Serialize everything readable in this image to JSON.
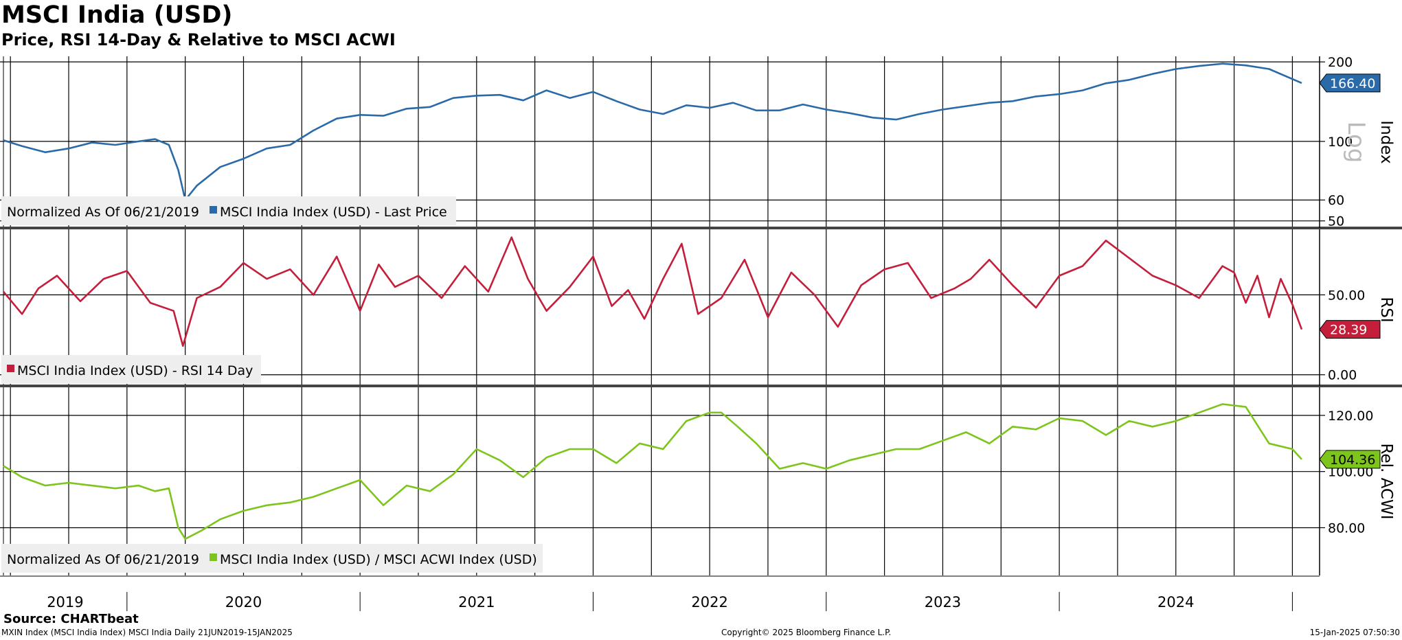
{
  "title": "MSCI India (USD)",
  "subtitle": "Price, RSI 14-Day & Relative to MSCI ACWI",
  "source": "Source: CHARTbeat",
  "footer": {
    "left": "MXIN Index (MSCI India Index) MSCI India  Daily 21JUN2019-15JAN2025",
    "center": "Copyright© 2025 Bloomberg Finance L.P.",
    "right": "15-Jan-2025 07:50:30"
  },
  "colors": {
    "price": "#2a6aa8",
    "rsi": "#c41e3a",
    "relative": "#7dc51c",
    "grid": "#000000"
  },
  "chart_data": [
    {
      "type": "line",
      "name": "price-panel",
      "legend_prefix": "Normalized As Of 06/21/2019",
      "legend": "MSCI India Index (USD)  - Last Price",
      "ylabel": "Index",
      "scale_label": "Log",
      "ylim": [
        47,
        210
      ],
      "yticks": [
        "200",
        "100",
        "60",
        "50"
      ],
      "last_value": "166.40",
      "series": [
        {
          "name": "MSCI India Index (USD) - Last Price",
          "x": [
            2019.47,
            2019.55,
            2019.65,
            2019.75,
            2019.85,
            2019.95,
            2020.05,
            2020.12,
            2020.18,
            2020.22,
            2020.25,
            2020.3,
            2020.4,
            2020.5,
            2020.6,
            2020.7,
            2020.8,
            2020.9,
            2021.0,
            2021.1,
            2021.2,
            2021.3,
            2021.4,
            2021.5,
            2021.6,
            2021.7,
            2021.8,
            2021.9,
            2022.0,
            2022.1,
            2022.2,
            2022.3,
            2022.4,
            2022.5,
            2022.6,
            2022.7,
            2022.8,
            2022.9,
            2023.0,
            2023.1,
            2023.2,
            2023.3,
            2023.4,
            2023.5,
            2023.6,
            2023.7,
            2023.8,
            2023.9,
            2024.0,
            2024.1,
            2024.2,
            2024.3,
            2024.4,
            2024.5,
            2024.6,
            2024.7,
            2024.8,
            2024.9,
            2025.04
          ],
          "values": [
            101,
            96,
            91,
            94,
            99,
            97,
            100,
            102,
            97,
            78,
            60,
            68,
            80,
            86,
            94,
            97,
            110,
            122,
            126,
            125,
            133,
            135,
            146,
            149,
            150,
            143,
            156,
            146,
            154,
            142,
            132,
            127,
            137,
            134,
            140,
            131,
            131,
            138,
            132,
            128,
            123,
            121,
            127,
            132,
            136,
            140,
            142,
            148,
            151,
            156,
            166,
            171,
            180,
            188,
            193,
            197,
            194,
            188,
            166.4
          ]
        }
      ]
    },
    {
      "type": "line",
      "name": "rsi-panel",
      "legend": "MSCI India Index (USD) - RSI 14 Day",
      "ylabel": "RSI",
      "ylim": [
        -7,
        91
      ],
      "yticks": [
        "50.00",
        "0.00"
      ],
      "last_value": "28.39",
      "series": [
        {
          "name": "MSCI India Index (USD) - RSI 14 Day",
          "x": [
            2019.47,
            2019.55,
            2019.62,
            2019.7,
            2019.8,
            2019.9,
            2020.0,
            2020.1,
            2020.2,
            2020.24,
            2020.3,
            2020.4,
            2020.5,
            2020.6,
            2020.7,
            2020.8,
            2020.9,
            2021.0,
            2021.08,
            2021.15,
            2021.25,
            2021.35,
            2021.45,
            2021.55,
            2021.65,
            2021.72,
            2021.8,
            2021.9,
            2022.0,
            2022.08,
            2022.15,
            2022.22,
            2022.3,
            2022.38,
            2022.45,
            2022.55,
            2022.65,
            2022.75,
            2022.85,
            2022.95,
            2023.05,
            2023.15,
            2023.25,
            2023.35,
            2023.45,
            2023.55,
            2023.62,
            2023.7,
            2023.8,
            2023.9,
            2024.0,
            2024.1,
            2024.2,
            2024.3,
            2024.4,
            2024.5,
            2024.6,
            2024.7,
            2024.75,
            2024.8,
            2024.85,
            2024.9,
            2024.95,
            2025.0,
            2025.04
          ],
          "values": [
            52,
            38,
            54,
            62,
            46,
            60,
            65,
            45,
            40,
            18,
            48,
            55,
            70,
            60,
            66,
            50,
            74,
            40,
            69,
            55,
            62,
            48,
            68,
            52,
            86,
            60,
            40,
            55,
            74,
            43,
            53,
            35,
            60,
            82,
            38,
            48,
            72,
            36,
            64,
            50,
            30,
            56,
            66,
            70,
            48,
            54,
            60,
            72,
            56,
            42,
            62,
            68,
            84,
            73,
            62,
            56,
            48,
            68,
            64,
            45,
            62,
            36,
            60,
            44,
            28.39
          ]
        }
      ]
    },
    {
      "type": "line",
      "name": "relative-panel",
      "legend_prefix": "Normalized As Of 06/21/2019",
      "legend": "MSCI India Index (USD) / MSCI ACWI Index (USD)",
      "ylabel": "Rel. ACWI",
      "ylim": [
        63,
        130
      ],
      "yticks": [
        "120.00",
        "100.00",
        "80.00"
      ],
      "last_value": "104.36",
      "series": [
        {
          "name": "MSCI India Index (USD) / MSCI ACWI Index (USD)",
          "x": [
            2019.47,
            2019.55,
            2019.65,
            2019.75,
            2019.85,
            2019.95,
            2020.05,
            2020.12,
            2020.18,
            2020.22,
            2020.25,
            2020.32,
            2020.4,
            2020.5,
            2020.6,
            2020.7,
            2020.8,
            2020.9,
            2021.0,
            2021.1,
            2021.2,
            2021.3,
            2021.4,
            2021.5,
            2021.6,
            2021.7,
            2021.8,
            2021.9,
            2022.0,
            2022.1,
            2022.2,
            2022.3,
            2022.4,
            2022.5,
            2022.55,
            2022.62,
            2022.7,
            2022.8,
            2022.9,
            2023.0,
            2023.1,
            2023.2,
            2023.3,
            2023.4,
            2023.5,
            2023.6,
            2023.7,
            2023.8,
            2023.9,
            2024.0,
            2024.1,
            2024.2,
            2024.3,
            2024.4,
            2024.5,
            2024.6,
            2024.7,
            2024.8,
            2024.9,
            2025.0,
            2025.04
          ],
          "values": [
            102,
            98,
            95,
            96,
            95,
            94,
            95,
            93,
            94,
            80,
            76,
            79,
            83,
            86,
            88,
            89,
            91,
            94,
            97,
            88,
            95,
            93,
            99,
            108,
            104,
            98,
            105,
            108,
            108,
            103,
            110,
            108,
            118,
            121,
            121,
            116,
            110,
            101,
            103,
            101,
            104,
            106,
            108,
            108,
            111,
            114,
            110,
            116,
            115,
            119,
            118,
            113,
            118,
            116,
            118,
            121,
            124,
            123,
            110,
            108,
            104.36
          ]
        }
      ]
    }
  ],
  "xaxis": {
    "year_labels": [
      "2019",
      "2020",
      "2021",
      "2022",
      "2023",
      "2024"
    ]
  }
}
